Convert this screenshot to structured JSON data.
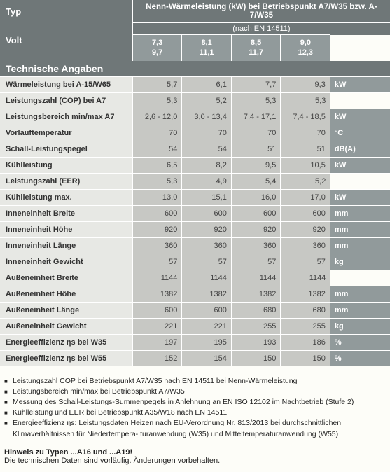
{
  "header": {
    "typ": "Typ",
    "volt": "Volt",
    "nenn_title": "Nenn-Wärmeleistung (kW) bei Betriebspunkt A7/W35 bzw. A-7/W35",
    "nenn_sub": "(nach EN 14511)",
    "models": [
      {
        "top": "7,3",
        "bottom": "9,7"
      },
      {
        "top": "8,1",
        "bottom": "11,1"
      },
      {
        "top": "8,5",
        "bottom": "11,7"
      },
      {
        "top": "9,0",
        "bottom": "12,3"
      }
    ]
  },
  "section": "Technische Angaben",
  "rows": [
    {
      "label": "Wärmeleistung bei A-15/W65",
      "v": [
        "5,7",
        "6,1",
        "7,7",
        "9,3"
      ],
      "unit": "kW"
    },
    {
      "label": "Leistungszahl (COP) bei A7",
      "v": [
        "5,3",
        "5,2",
        "5,3",
        "5,3"
      ],
      "unit": ""
    },
    {
      "label": "Leistungsbereich min/max A7",
      "v": [
        "2,6 - 12,0",
        "3,0 - 13,4",
        "7,4 - 17,1",
        "7,4 - 18,5"
      ],
      "unit": "kW"
    },
    {
      "label": "Vorlauftemperatur",
      "v": [
        "70",
        "70",
        "70",
        "70"
      ],
      "unit": "°C"
    },
    {
      "label": "Schall-Leistungspegel",
      "v": [
        "54",
        "54",
        "51",
        "51"
      ],
      "unit": "dB(A)"
    },
    {
      "label": "Kühlleistung",
      "v": [
        "6,5",
        "8,2",
        "9,5",
        "10,5"
      ],
      "unit": "kW"
    },
    {
      "label": "Leistungszahl (EER)",
      "v": [
        "5,3",
        "4,9",
        "5,4",
        "5,2"
      ],
      "unit": ""
    },
    {
      "label": "Kühlleistung max.",
      "v": [
        "13,0",
        "15,1",
        "16,0",
        "17,0"
      ],
      "unit": "kW"
    },
    {
      "label": "Inneneinheit Breite",
      "v": [
        "600",
        "600",
        "600",
        "600"
      ],
      "unit": "mm"
    },
    {
      "label": "Inneneinheit Höhe",
      "v": [
        "920",
        "920",
        "920",
        "920"
      ],
      "unit": "mm"
    },
    {
      "label": "Inneneinheit Länge",
      "v": [
        "360",
        "360",
        "360",
        "360"
      ],
      "unit": "mm"
    },
    {
      "label": "Inneneinheit Gewicht",
      "v": [
        "57",
        "57",
        "57",
        "57"
      ],
      "unit": "kg"
    },
    {
      "label": "Außeneinheit Breite",
      "v": [
        "1144",
        "1144",
        "1144",
        "1144"
      ],
      "unit": ""
    },
    {
      "label": "Außeneinheit Höhe",
      "v": [
        "1382",
        "1382",
        "1382",
        "1382"
      ],
      "unit": "mm"
    },
    {
      "label": "Außeneinheit Länge",
      "v": [
        "600",
        "600",
        "680",
        "680"
      ],
      "unit": "mm"
    },
    {
      "label": "Außeneinheit Gewicht",
      "v": [
        "221",
        "221",
        "255",
        "255"
      ],
      "unit": "kg"
    },
    {
      "label": "Energieeffizienz ηs bei W35",
      "v": [
        "197",
        "195",
        "193",
        "186"
      ],
      "unit": "%"
    },
    {
      "label": "Energieeffizienz ηs bei W55",
      "v": [
        "152",
        "154",
        "150",
        "150"
      ],
      "unit": "%"
    }
  ],
  "footnotes": [
    "Leistungszahl COP bei Betriebspunkt A7/W35 nach EN 14511 bei Nenn-Wärmeleistung",
    "Leistungsbereich min/max bei Betriebspunkt A7/W35",
    "Messung des Schall-Leistungs-Summenpegels in Anlehnung an EN ISO 12102 im Nachtbetrieb (Stufe 2)",
    "Kühlleistung und EER bei Betriebspunkt A35/W18 nach EN 14511",
    "Energieeffizienz ηs: Leistungsdaten Heizen nach EU-Verordnung Nr. 813/2013 bei durchschnittlichen Klimaverhältnissen für Niedertempera-\nturanwendung (W35) und Mitteltemperaturanwendung (W55)"
  ],
  "hinweis": {
    "title": "Hinweis zu Typen ...A16 und ...A19!",
    "text": "Die technischen Daten sind vorläufig. Änderungen vorbehalten."
  }
}
